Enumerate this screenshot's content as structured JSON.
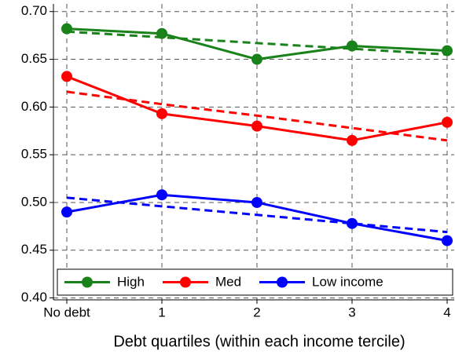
{
  "chart_data": {
    "type": "line",
    "x_label": "Debt quartiles (within each income tercile)",
    "categories": [
      "No debt",
      "1",
      "2",
      "3",
      "4"
    ],
    "series": [
      {
        "name": "High",
        "color": "#1a821a",
        "values": [
          0.682,
          0.677,
          0.65,
          0.664,
          0.659
        ]
      },
      {
        "name": "Med",
        "color": "#ff0000",
        "values": [
          0.632,
          0.593,
          0.58,
          0.565,
          0.584
        ]
      },
      {
        "name": "Low income",
        "color": "#0000ff",
        "values": [
          0.49,
          0.508,
          0.5,
          0.478,
          0.46
        ]
      },
      {
        "color": "#1a821a",
        "values": [
          0.679,
          0.673,
          0.667,
          0.661,
          0.655
        ],
        "dashed": true
      },
      {
        "color": "#ff0000",
        "values": [
          0.616,
          0.603,
          0.591,
          0.578,
          0.565
        ],
        "dashed": true
      },
      {
        "color": "#0000ff",
        "values": [
          0.505,
          0.496,
          0.487,
          0.478,
          0.469
        ],
        "dashed": true
      }
    ],
    "ylim": [
      0.398,
      0.708
    ],
    "yticks": [
      {
        "value": 0.4,
        "label": "0.40"
      },
      {
        "value": 0.45,
        "label": "0.45"
      },
      {
        "value": 0.5,
        "label": "0.50"
      },
      {
        "value": 0.55,
        "label": "0.55"
      },
      {
        "value": 0.6,
        "label": "0.60"
      },
      {
        "value": 0.65,
        "label": "0.65"
      },
      {
        "value": 0.7,
        "label": "0.70"
      }
    ],
    "grid": true,
    "legend": "bottom"
  }
}
